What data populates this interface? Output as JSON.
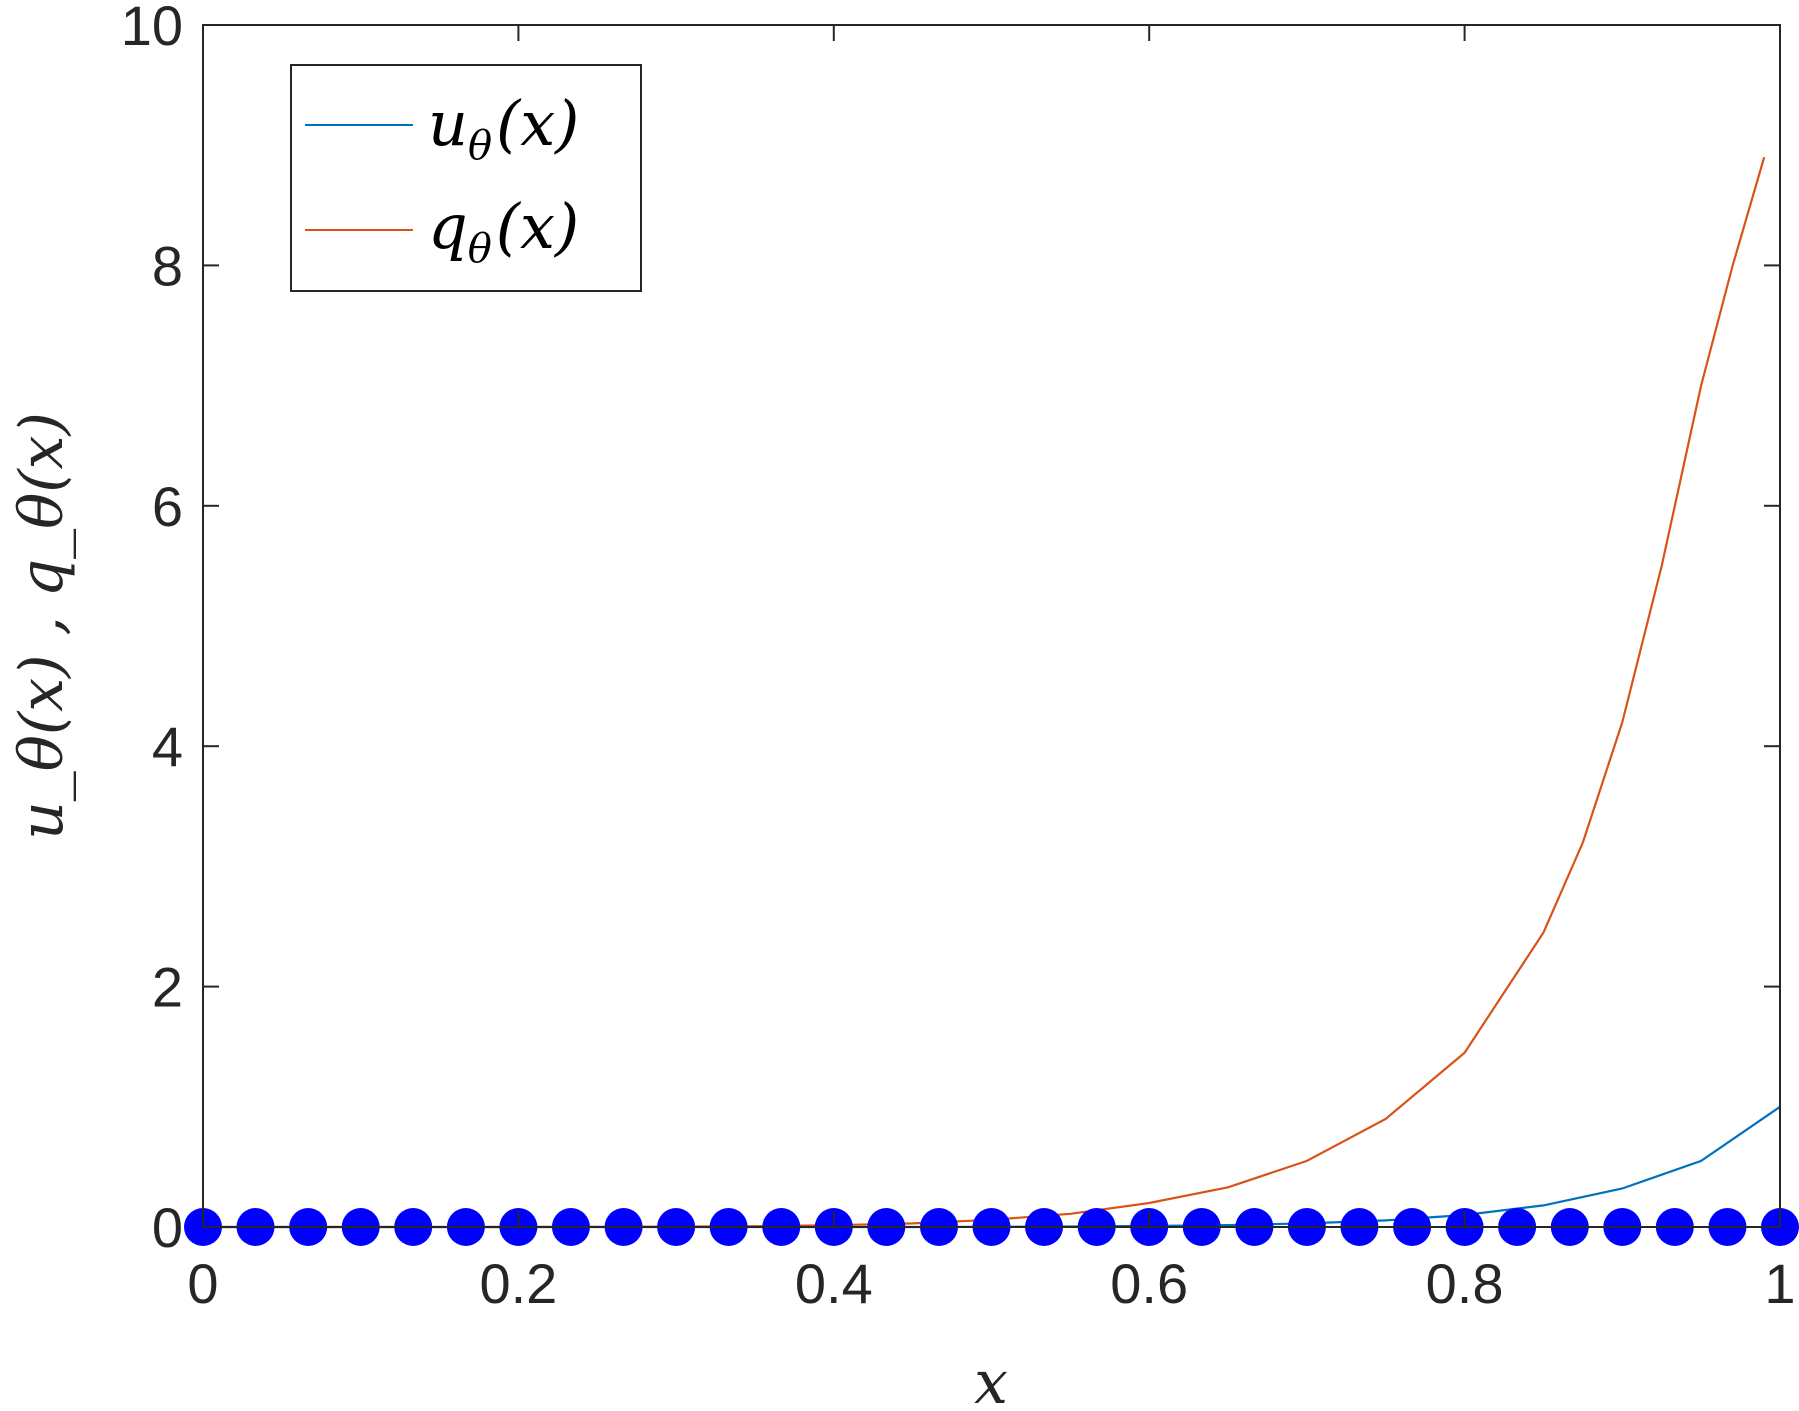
{
  "chart_data": {
    "type": "line",
    "xlabel": "x",
    "ylabel": "u_θ(x) , q_θ(x)",
    "xlim": [
      0,
      1
    ],
    "ylim": [
      0,
      10
    ],
    "xticks": [
      0,
      0.2,
      0.4,
      0.6,
      0.8,
      1
    ],
    "xtick_labels": [
      "0",
      "0.2",
      "0.4",
      "0.6",
      "0.8",
      "1"
    ],
    "yticks": [
      0,
      2,
      4,
      6,
      8,
      10
    ],
    "ytick_labels": [
      "0",
      "2",
      "4",
      "6",
      "8",
      "10"
    ],
    "grid": false,
    "legend_placement": "top-left",
    "series": [
      {
        "name": "uθ(x)",
        "label_main": "u",
        "label_sub": "θ",
        "label_rest": "(x)",
        "color": "#0072BD",
        "x": [
          0,
          0.05,
          0.1,
          0.15,
          0.2,
          0.25,
          0.3,
          0.35,
          0.4,
          0.45,
          0.5,
          0.55,
          0.6,
          0.65,
          0.7,
          0.75,
          0.8,
          0.85,
          0.9,
          0.95,
          1.0
        ],
        "y": [
          0,
          0,
          0,
          0,
          0,
          0,
          0,
          0,
          0,
          0,
          0.002,
          0.004,
          0.008,
          0.016,
          0.03,
          0.055,
          0.1,
          0.18,
          0.32,
          0.55,
          1.0
        ]
      },
      {
        "name": "qθ(x)",
        "label_main": "q",
        "label_sub": "θ",
        "label_rest": "(x)",
        "color": "#D95319",
        "x": [
          0,
          0.05,
          0.1,
          0.15,
          0.2,
          0.25,
          0.3,
          0.35,
          0.4,
          0.45,
          0.5,
          0.55,
          0.6,
          0.65,
          0.7,
          0.75,
          0.8,
          0.85,
          0.875,
          0.9,
          0.925,
          0.95,
          0.97,
          0.99
        ],
        "y": [
          0,
          0,
          0,
          0,
          0,
          0.001,
          0.003,
          0.007,
          0.015,
          0.03,
          0.06,
          0.11,
          0.2,
          0.33,
          0.55,
          0.9,
          1.45,
          2.45,
          3.2,
          4.2,
          5.5,
          7.0,
          8.0,
          8.9
        ]
      },
      {
        "name": "markers",
        "color": "#0000FF",
        "style": "markers",
        "x": [
          0,
          0.0333,
          0.0667,
          0.1,
          0.1333,
          0.1667,
          0.2,
          0.2333,
          0.2667,
          0.3,
          0.3333,
          0.3667,
          0.4,
          0.4333,
          0.4667,
          0.5,
          0.5333,
          0.5667,
          0.6,
          0.6333,
          0.6667,
          0.7,
          0.7333,
          0.7667,
          0.8,
          0.8333,
          0.8667,
          0.9,
          0.9333,
          0.9667,
          1.0
        ],
        "y": [
          0,
          0,
          0,
          0,
          0,
          0,
          0,
          0,
          0,
          0,
          0,
          0,
          0,
          0,
          0,
          0,
          0,
          0,
          0,
          0,
          0,
          0,
          0,
          0,
          0,
          0,
          0,
          0,
          0,
          0,
          0
        ]
      }
    ]
  }
}
